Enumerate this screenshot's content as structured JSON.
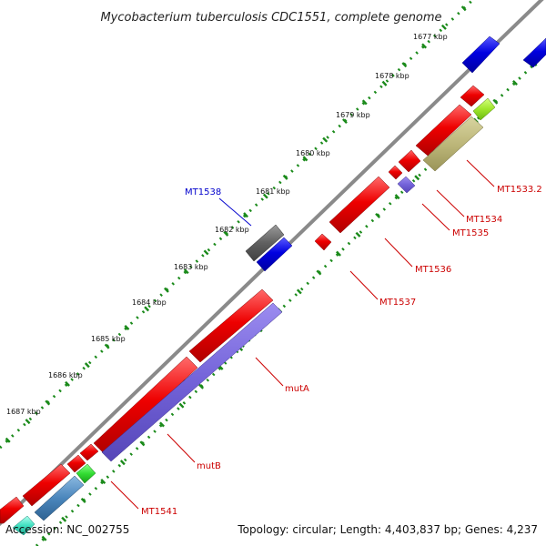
{
  "title": "Mycobacterium tuberculosis CDC1551, complete genome",
  "footer": {
    "accession": "Accession: NC_002755",
    "summary": "Topology: circular; Length: 4,403,837 bp; Genes: 4,237"
  },
  "colors": {
    "backbone": "#8a8a8a",
    "tick": "#1a8a1a",
    "forward_gene": "#ee0000",
    "reverse_gene": "#0000dd",
    "label_forward": "#cc0000",
    "label_reverse": "#0000cc"
  },
  "scale_ticks": [
    "1677 kbp",
    "1678 kbp",
    "1679 kbp",
    "1680 kbp",
    "1681 kbp",
    "1682 kbp",
    "1683 kbp",
    "1684 kbp",
    "1685 kbp",
    "1686 kbp",
    "1687 kbp"
  ],
  "gene_labels": [
    {
      "text": "MT1538",
      "color": "#0000cc"
    },
    {
      "text": "MT1533.2",
      "color": "#cc0000"
    },
    {
      "text": "MT1534",
      "color": "#cc0000"
    },
    {
      "text": "MT1535",
      "color": "#cc0000"
    },
    {
      "text": "MT1536",
      "color": "#cc0000"
    },
    {
      "text": "MT1537",
      "color": "#cc0000"
    },
    {
      "text": "mutA",
      "color": "#cc0000"
    },
    {
      "text": "mutB",
      "color": "#cc0000"
    },
    {
      "text": "MT1541",
      "color": "#cc0000"
    }
  ]
}
